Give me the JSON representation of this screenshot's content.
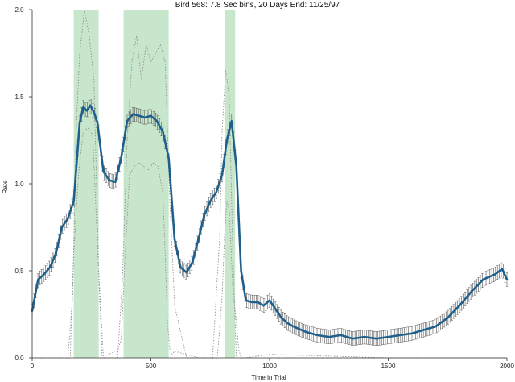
{
  "chart_data": {
    "type": "line",
    "title": "Bird 568: 7.8 Sec bins, 20 Days End: 11/25/97",
    "xlabel": "Time in Trial",
    "ylabel": "Rate",
    "xlim": [
      0,
      2000
    ],
    "ylim": [
      0,
      2.0
    ],
    "x_ticks": [
      0,
      500,
      1000,
      1500,
      2000
    ],
    "y_ticks": [
      0.0,
      0.5,
      1.0,
      1.5,
      2.0
    ],
    "x_tick_labels": [
      "0",
      "500",
      "1000",
      "1500",
      "2000"
    ],
    "y_tick_labels": [
      "0.0",
      "0.5",
      "1.0",
      "1.5",
      "2.0"
    ],
    "grid": false,
    "highlight_color": "#c8e6cc",
    "line_color": "#1f5f8b",
    "errorbar_color": "#555555",
    "dotted_color": "#888888",
    "highlight_bands": [
      {
        "start": 175,
        "end": 280
      },
      {
        "start": 385,
        "end": 575
      },
      {
        "start": 810,
        "end": 855
      }
    ],
    "series": [
      {
        "role": "mean",
        "x": [
          0,
          25,
          50,
          75,
          100,
          125,
          150,
          175,
          200,
          215,
          230,
          245,
          260,
          275,
          300,
          325,
          350,
          375,
          400,
          425,
          450,
          475,
          500,
          525,
          550,
          575,
          600,
          625,
          650,
          675,
          700,
          725,
          750,
          775,
          800,
          820,
          840,
          860,
          880,
          900,
          925,
          950,
          975,
          1000,
          1025,
          1050,
          1075,
          1100,
          1150,
          1200,
          1250,
          1300,
          1350,
          1400,
          1450,
          1500,
          1550,
          1600,
          1650,
          1700,
          1750,
          1800,
          1850,
          1900,
          1950,
          1980,
          2000
        ],
        "y": [
          0.27,
          0.45,
          0.48,
          0.52,
          0.6,
          0.75,
          0.8,
          0.9,
          1.35,
          1.44,
          1.42,
          1.45,
          1.41,
          1.35,
          1.07,
          1.02,
          1.01,
          1.15,
          1.36,
          1.4,
          1.39,
          1.38,
          1.39,
          1.36,
          1.3,
          1.15,
          0.68,
          0.52,
          0.49,
          0.55,
          0.68,
          0.82,
          0.9,
          0.95,
          1.05,
          1.25,
          1.36,
          1.1,
          0.5,
          0.33,
          0.32,
          0.32,
          0.3,
          0.33,
          0.28,
          0.23,
          0.2,
          0.18,
          0.15,
          0.13,
          0.12,
          0.13,
          0.11,
          0.12,
          0.11,
          0.12,
          0.13,
          0.14,
          0.16,
          0.18,
          0.23,
          0.3,
          0.38,
          0.45,
          0.48,
          0.51,
          0.45
        ],
        "error": 0.04
      },
      {
        "role": "upper-dotted",
        "x": [
          0,
          100,
          150,
          170,
          185,
          200,
          220,
          240,
          260,
          280,
          300,
          330,
          360,
          380,
          400,
          420,
          440,
          460,
          480,
          500,
          520,
          540,
          560,
          580,
          600,
          650,
          700,
          760,
          790,
          800,
          815,
          830,
          845,
          860,
          880,
          900,
          1000,
          1500,
          2000
        ],
        "y": [
          0.0,
          0.0,
          0.0,
          0.35,
          1.3,
          1.75,
          2.0,
          1.85,
          1.6,
          0.5,
          0.0,
          0.0,
          0.0,
          0.45,
          1.25,
          1.7,
          1.85,
          1.6,
          1.8,
          1.7,
          1.75,
          1.8,
          1.7,
          0.9,
          0.3,
          0.0,
          0.0,
          0.0,
          0.7,
          1.3,
          1.65,
          1.5,
          0.6,
          0.0,
          0.0,
          0.0,
          0.0,
          0.0,
          0.0
        ]
      },
      {
        "role": "lower-dotted",
        "x": [
          0,
          100,
          150,
          160,
          175,
          195,
          215,
          235,
          255,
          275,
          295,
          300,
          320,
          340,
          360,
          375,
          390,
          410,
          430,
          450,
          470,
          490,
          510,
          530,
          550,
          560,
          570,
          580,
          590,
          600,
          620,
          700,
          780,
          800,
          810,
          820,
          830,
          845,
          860,
          870,
          880,
          900,
          1000,
          1500,
          2000
        ],
        "y": [
          0.0,
          0.0,
          0.0,
          0.0,
          0.6,
          1.05,
          1.3,
          1.32,
          1.28,
          0.65,
          0.0,
          0.0,
          0.02,
          0.03,
          0.05,
          0.1,
          0.55,
          1.05,
          1.1,
          1.12,
          1.1,
          1.08,
          1.12,
          1.1,
          0.95,
          0.6,
          0.2,
          0.05,
          0.02,
          0.04,
          0.03,
          0.0,
          0.0,
          0.35,
          0.7,
          0.9,
          0.85,
          0.4,
          0.2,
          0.05,
          0.0,
          0.0,
          0.02,
          0.0,
          0.0
        ]
      }
    ]
  }
}
